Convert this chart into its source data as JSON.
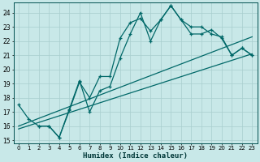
{
  "xlabel": "Humidex (Indice chaleur)",
  "bg_color": "#c8e8e8",
  "grid_color": "#a8cece",
  "line_color": "#006868",
  "xlim": [
    -0.5,
    23.5
  ],
  "ylim": [
    14.8,
    24.7
  ],
  "yticks": [
    15,
    16,
    17,
    18,
    19,
    20,
    21,
    22,
    23,
    24
  ],
  "xticks": [
    0,
    1,
    2,
    3,
    4,
    5,
    6,
    7,
    8,
    9,
    10,
    11,
    12,
    13,
    14,
    15,
    16,
    17,
    18,
    19,
    20,
    21,
    22,
    23
  ],
  "line1_x": [
    0,
    1,
    2,
    3,
    4,
    5,
    6,
    7,
    8,
    9,
    10,
    11,
    12,
    13,
    14,
    15,
    16,
    17,
    18,
    19,
    20,
    21,
    22,
    23
  ],
  "line1_y": [
    17.5,
    16.5,
    16.0,
    16.0,
    15.2,
    17.1,
    19.1,
    18.0,
    19.5,
    19.5,
    22.2,
    23.3,
    23.6,
    22.7,
    23.5,
    24.5,
    23.5,
    23.0,
    23.0,
    22.5,
    22.3,
    21.0,
    21.5,
    21.0
  ],
  "line2_x": [
    2,
    3,
    4,
    5,
    6,
    7,
    8,
    9,
    10,
    11,
    12,
    13,
    14,
    15,
    16,
    17,
    18,
    19,
    20,
    21,
    22,
    23
  ],
  "line2_y": [
    16.0,
    16.0,
    15.2,
    17.2,
    19.2,
    17.0,
    18.5,
    18.8,
    20.8,
    22.5,
    24.0,
    22.0,
    23.5,
    24.5,
    23.5,
    22.5,
    22.5,
    22.8,
    22.2,
    21.0,
    21.5,
    21.0
  ],
  "trend1_x": [
    0,
    23
  ],
  "trend1_y": [
    16.0,
    22.3
  ],
  "trend2_x": [
    0,
    23
  ],
  "trend2_y": [
    15.8,
    21.1
  ]
}
